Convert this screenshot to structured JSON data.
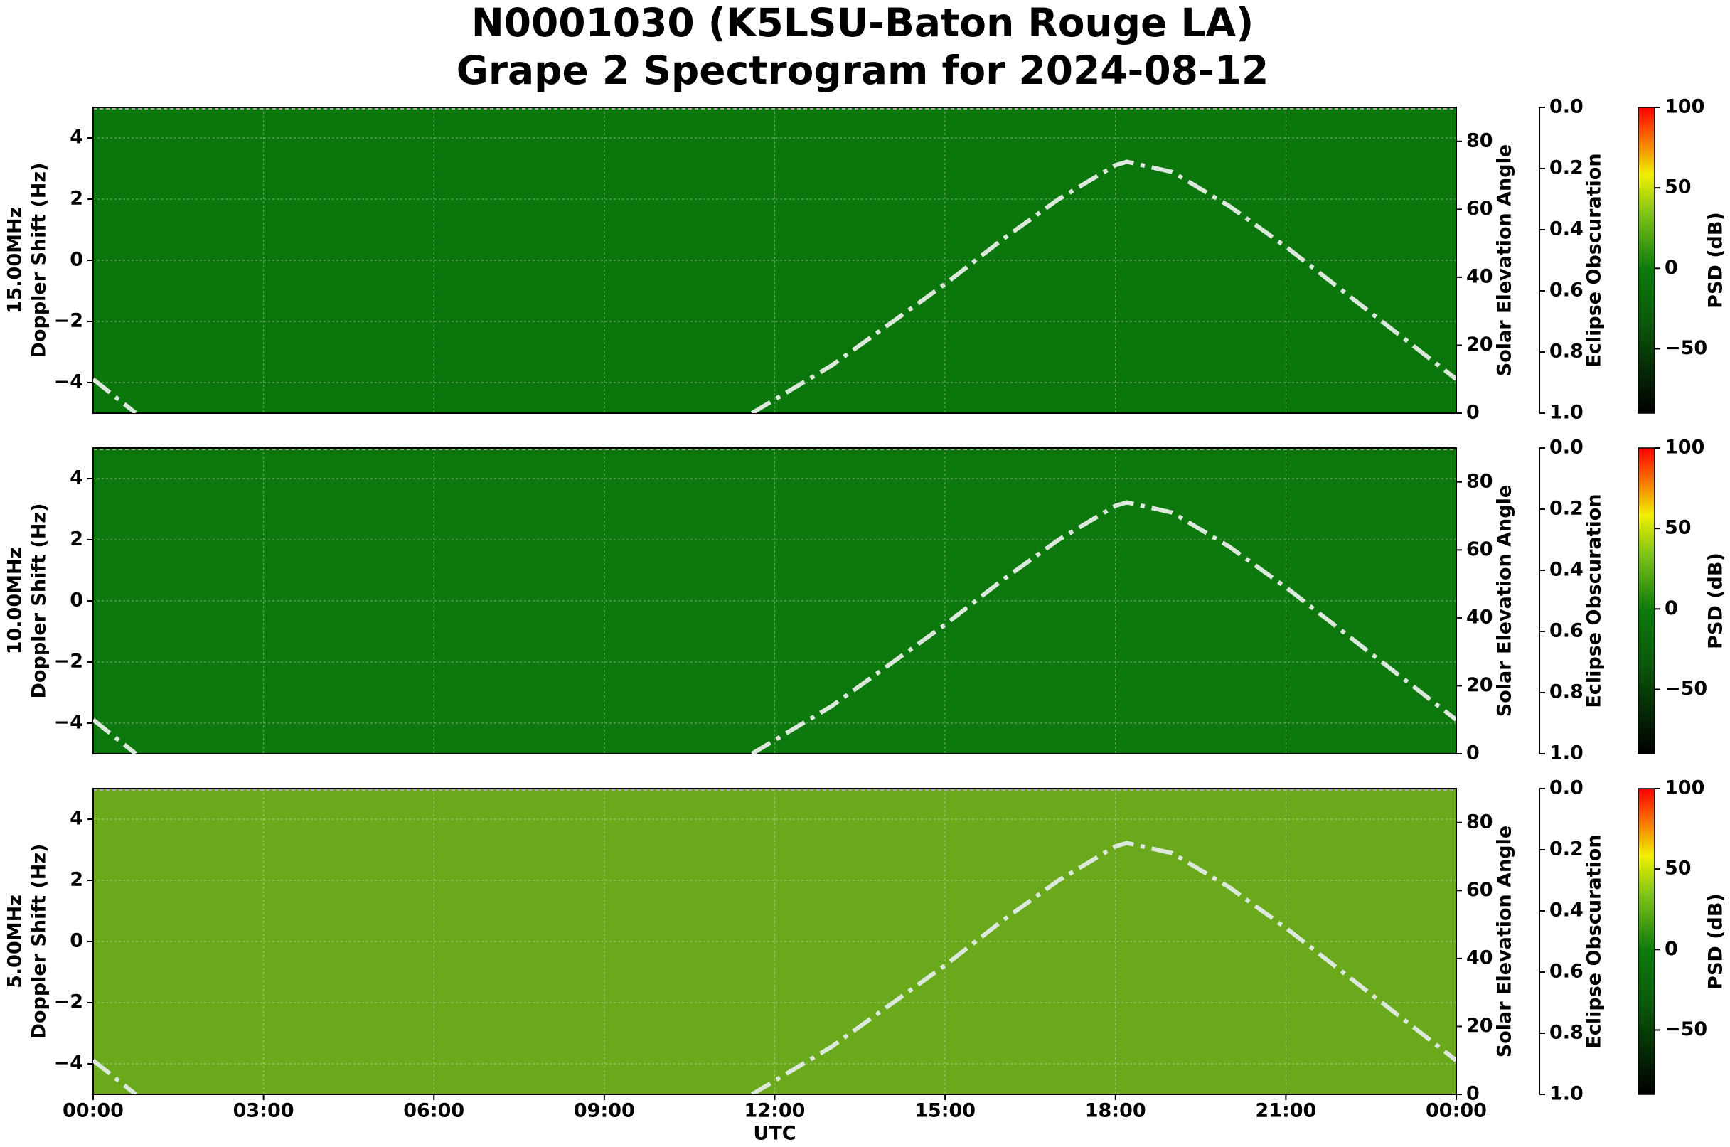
{
  "title": [
    "N0001030 (K5LSU-Baton Rouge LA)",
    "Grape 2 Spectrogram for 2024-08-12"
  ],
  "chart_data": [
    {
      "type": "line",
      "ylabel": [
        "15.00MHz",
        "Doppler Shift (Hz)"
      ],
      "background": "#0b760b",
      "ylim": [
        -5,
        5
      ],
      "yticks": [
        {
          "value": -4,
          "label": "−4"
        },
        {
          "value": -2,
          "label": "−2"
        },
        0,
        2,
        4
      ],
      "y2label": "Solar Elevation Angle",
      "y2lim": [
        0,
        90
      ],
      "y2ticks": [
        0,
        20,
        40,
        60,
        80
      ],
      "y3label": "Eclipse Obscuration",
      "y3lim": [
        1,
        0
      ],
      "y3ticks": [
        {
          "value": 0,
          "label": "0.0"
        },
        {
          "value": 0.2,
          "label": "0.2"
        },
        {
          "value": 0.4,
          "label": "0.4"
        },
        {
          "value": 0.6,
          "label": "0.6"
        },
        {
          "value": 0.8,
          "label": "0.8"
        },
        {
          "value": 1,
          "label": "1.0"
        }
      ],
      "colorbar": {
        "label": "PSD (dB)",
        "lim": [
          -90,
          100
        ],
        "ticks": [
          {
            "value": -50,
            "label": "−50"
          },
          0,
          50,
          100
        ]
      },
      "color": "#dce8dc",
      "x": [
        0,
        0.75,
        6,
        11.6,
        13,
        14,
        15,
        16,
        17,
        18,
        18.2,
        19,
        20,
        21,
        22,
        23,
        24
      ],
      "values": [
        10,
        0,
        null,
        0,
        14,
        26,
        38,
        51,
        63,
        73,
        74,
        71,
        61,
        49,
        36,
        23,
        10
      ]
    },
    {
      "type": "line",
      "ylabel": [
        "10.00MHz",
        "Doppler Shift (Hz)"
      ],
      "background": "#0d780d",
      "ylim": [
        -5,
        5
      ],
      "yticks": [
        {
          "value": -4,
          "label": "−4"
        },
        {
          "value": -2,
          "label": "−2"
        },
        0,
        2,
        4
      ],
      "y2label": "Solar Elevation Angle",
      "y2lim": [
        0,
        90
      ],
      "y2ticks": [
        0,
        20,
        40,
        60,
        80
      ],
      "y3label": "Eclipse Obscuration",
      "y3lim": [
        1,
        0
      ],
      "y3ticks": [
        {
          "value": 0,
          "label": "0.0"
        },
        {
          "value": 0.2,
          "label": "0.2"
        },
        {
          "value": 0.4,
          "label": "0.4"
        },
        {
          "value": 0.6,
          "label": "0.6"
        },
        {
          "value": 0.8,
          "label": "0.8"
        },
        {
          "value": 1,
          "label": "1.0"
        }
      ],
      "colorbar": {
        "label": "PSD (dB)",
        "lim": [
          -90,
          100
        ],
        "ticks": [
          {
            "value": -50,
            "label": "−50"
          },
          0,
          50,
          100
        ]
      },
      "color": "#dce8dc",
      "x": [
        0,
        0.75,
        6,
        11.6,
        13,
        14,
        15,
        16,
        17,
        18,
        18.2,
        19,
        20,
        21,
        22,
        23,
        24
      ],
      "values": [
        10,
        0,
        null,
        0,
        14,
        26,
        38,
        51,
        63,
        73,
        74,
        71,
        61,
        49,
        36,
        23,
        10
      ]
    },
    {
      "type": "line",
      "ylabel": [
        "5.00MHz",
        "Doppler Shift (Hz)"
      ],
      "background": "#6aa81c",
      "ylim": [
        -5,
        5
      ],
      "yticks": [
        {
          "value": -4,
          "label": "−4"
        },
        {
          "value": -2,
          "label": "−2"
        },
        0,
        2,
        4
      ],
      "y2label": "Solar Elevation Angle",
      "y2lim": [
        0,
        90
      ],
      "y2ticks": [
        0,
        20,
        40,
        60,
        80
      ],
      "y3label": "Eclipse Obscuration",
      "y3lim": [
        1,
        0
      ],
      "y3ticks": [
        {
          "value": 0,
          "label": "0.0"
        },
        {
          "value": 0.2,
          "label": "0.2"
        },
        {
          "value": 0.4,
          "label": "0.4"
        },
        {
          "value": 0.6,
          "label": "0.6"
        },
        {
          "value": 0.8,
          "label": "0.8"
        },
        {
          "value": 1,
          "label": "1.0"
        }
      ],
      "colorbar": {
        "label": "PSD (dB)",
        "lim": [
          -90,
          100
        ],
        "ticks": [
          {
            "value": -50,
            "label": "−50"
          },
          0,
          50,
          100
        ]
      },
      "color": "#dce8dc",
      "xlabel": "UTC",
      "xlim": [
        0,
        24
      ],
      "xticks": [
        {
          "value": 0,
          "label": "00:00"
        },
        {
          "value": 3,
          "label": "03:00"
        },
        {
          "value": 6,
          "label": "06:00"
        },
        {
          "value": 9,
          "label": "09:00"
        },
        {
          "value": 12,
          "label": "12:00"
        },
        {
          "value": 15,
          "label": "15:00"
        },
        {
          "value": 18,
          "label": "18:00"
        },
        {
          "value": 21,
          "label": "21:00"
        },
        {
          "value": 24,
          "label": "00:00"
        }
      ],
      "x": [
        0,
        0.75,
        6,
        11.6,
        13,
        14,
        15,
        16,
        17,
        18,
        18.2,
        19,
        20,
        21,
        22,
        23,
        24
      ],
      "values": [
        10,
        0,
        null,
        0,
        14,
        26,
        38,
        51,
        63,
        73,
        74,
        71,
        61,
        49,
        36,
        23,
        10
      ]
    }
  ]
}
